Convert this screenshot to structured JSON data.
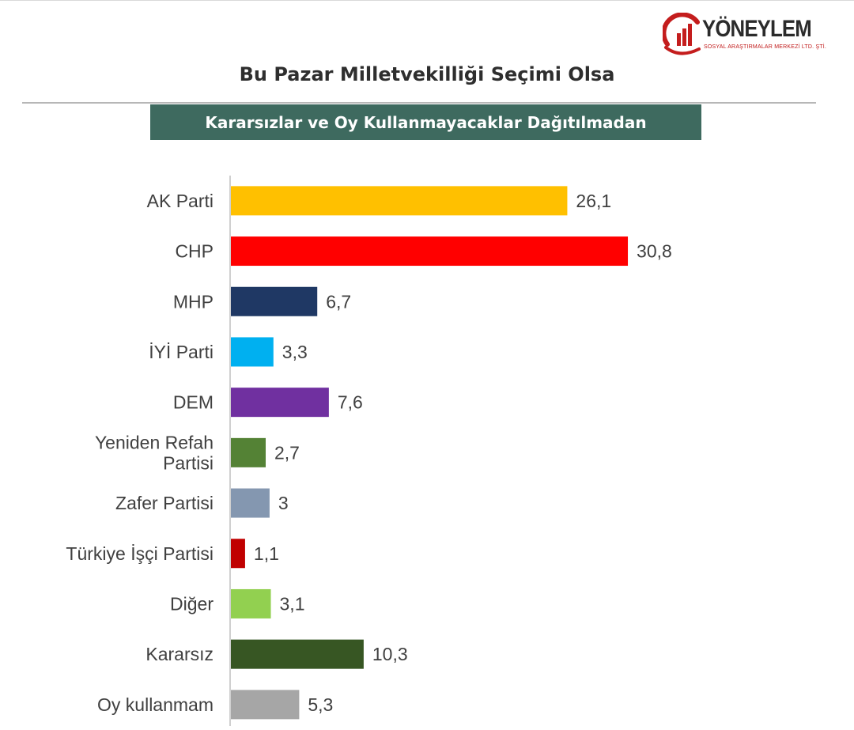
{
  "logo": {
    "name": "YÖNEYLEM",
    "subtitle": "SOSYAL ARAŞTIRMALAR MERKEZİ LTD. ŞTİ."
  },
  "header": {
    "title": "Bu Pazar Milletvekilliği Seçimi Olsa",
    "subtitle": "Kararsızlar ve Oy Kullanmayacaklar Dağıtılmadan"
  },
  "chart_data": {
    "type": "bar",
    "orientation": "horizontal",
    "title": "Bu Pazar Milletvekilliği Seçimi Olsa",
    "subtitle": "Kararsızlar ve Oy Kullanmayacaklar Dağıtılmadan",
    "xlabel": "",
    "ylabel": "",
    "xlim": [
      0,
      35
    ],
    "grid": false,
    "categories": [
      {
        "label": [
          "AK Parti"
        ],
        "value": 26.1,
        "value_label": "26,1",
        "color": "#FFC000"
      },
      {
        "label": [
          "CHP"
        ],
        "value": 30.8,
        "value_label": "30,8",
        "color": "#FF0000"
      },
      {
        "label": [
          "MHP"
        ],
        "value": 6.7,
        "value_label": "6,7",
        "color": "#1F3864"
      },
      {
        "label": [
          "İYİ Parti"
        ],
        "value": 3.3,
        "value_label": "3,3",
        "color": "#00B0F0"
      },
      {
        "label": [
          "DEM"
        ],
        "value": 7.6,
        "value_label": "7,6",
        "color": "#7030A0"
      },
      {
        "label": [
          "Yeniden Refah",
          "Partisi"
        ],
        "value": 2.7,
        "value_label": "2,7",
        "color": "#548235"
      },
      {
        "label": [
          "Zafer Partisi"
        ],
        "value": 3.0,
        "value_label": "3",
        "color": "#8497B0"
      },
      {
        "label": [
          "Türkiye İşçi Partisi"
        ],
        "value": 1.1,
        "value_label": "1,1",
        "color": "#C00000"
      },
      {
        "label": [
          "Diğer"
        ],
        "value": 3.1,
        "value_label": "3,1",
        "color": "#92D050"
      },
      {
        "label": [
          "Kararsız"
        ],
        "value": 10.3,
        "value_label": "10,3",
        "color": "#375623"
      },
      {
        "label": [
          "Oy kullanmam"
        ],
        "value": 5.3,
        "value_label": "5,3",
        "color": "#A6A6A6"
      }
    ]
  }
}
